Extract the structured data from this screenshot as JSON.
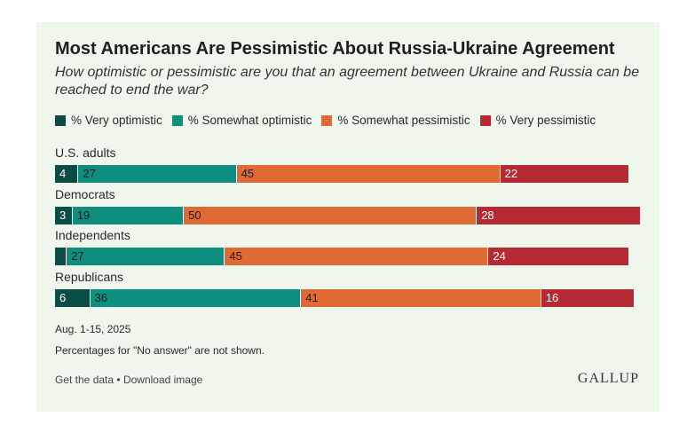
{
  "title": "Most Americans Are Pessimistic About Russia-Ukraine Agreement",
  "subtitle": "How optimistic or pessimistic are you that an agreement between Ukraine and Russia can be reached to end the war?",
  "footer": {
    "date": "Aug. 1-15, 2025",
    "note": "Percentages for \"No answer\" are not shown.",
    "get_data": "Get the data",
    "separator": "•",
    "download": "Download image",
    "logo": "GALLUP"
  },
  "chart_data": {
    "type": "bar",
    "orientation": "horizontal",
    "stacked": true,
    "xlim": [
      0,
      100
    ],
    "legend_position": "top",
    "categories": [
      "U.S. adults",
      "Democrats",
      "Independents",
      "Republicans"
    ],
    "series": [
      {
        "name": "% Very optimistic",
        "color": "#0b4d45",
        "label_color": "#ffffff",
        "values": [
          4,
          3,
          2,
          6
        ],
        "labels": [
          "4",
          "3",
          "",
          "6"
        ]
      },
      {
        "name": "% Somewhat optimistic",
        "color": "#0e8e7e",
        "label_color": "#1a1a1a",
        "values": [
          27,
          19,
          27,
          36
        ],
        "labels": [
          "27",
          "19",
          "27",
          "36"
        ]
      },
      {
        "name": "% Somewhat pessimistic",
        "color": "#df6a33",
        "label_color": "#1a1a1a",
        "values": [
          45,
          50,
          45,
          41
        ],
        "labels": [
          "45",
          "50",
          "45",
          "41"
        ]
      },
      {
        "name": "% Very pessimistic",
        "color": "#b52a33",
        "label_color": "#ffffff",
        "values": [
          22,
          28,
          24,
          16
        ],
        "labels": [
          "22",
          "28",
          "24",
          "16"
        ]
      }
    ]
  }
}
